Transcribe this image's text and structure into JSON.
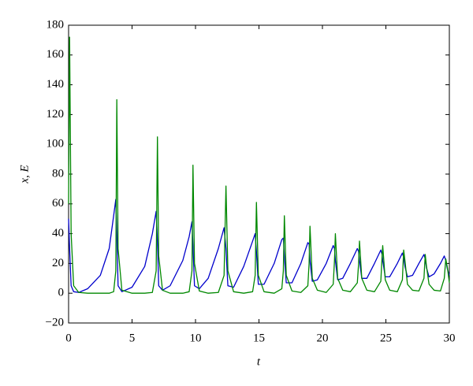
{
  "chart_data": {
    "type": "line",
    "xlabel": "t",
    "ylabel": "x, E",
    "x": [
      0,
      0.08,
      0.2,
      0.4,
      0.8,
      1.5,
      2.5,
      3.2,
      3.55,
      3.72,
      3.8,
      3.9,
      4.2,
      5,
      6,
      6.6,
      6.9,
      7,
      7.1,
      7.4,
      8,
      9,
      9.5,
      9.72,
      9.8,
      9.92,
      10.3,
      11,
      11.8,
      12.25,
      12.4,
      12.55,
      13,
      13.8,
      14.5,
      14.7,
      14.8,
      14.95,
      15.4,
      16.2,
      16.8,
      16.92,
      17,
      17.15,
      17.6,
      18.3,
      18.85,
      18.95,
      19.02,
      19.2,
      19.6,
      20.3,
      20.85,
      20.95,
      21.02,
      21.2,
      21.6,
      22.2,
      22.75,
      22.85,
      22.92,
      23.1,
      23.5,
      24.1,
      24.6,
      24.7,
      24.75,
      24.95,
      25.3,
      25.9,
      26.3,
      26.4,
      26.5,
      26.7,
      27.1,
      27.6,
      28,
      28.1,
      28.2,
      28.4,
      28.8,
      29.3,
      29.6,
      29.72,
      29.85,
      30
    ],
    "series": [
      {
        "color": "#0000cc",
        "values": [
          50,
          30,
          5,
          1,
          0.5,
          3,
          12,
          30,
          52,
          63,
          40,
          5,
          1,
          4,
          18,
          40,
          55,
          35,
          5,
          2,
          5,
          22,
          38,
          48,
          32,
          5,
          3,
          10,
          30,
          44,
          30,
          5,
          4,
          18,
          35,
          40,
          28,
          6,
          6,
          20,
          36,
          37,
          25,
          7,
          7,
          20,
          34,
          33,
          22,
          8,
          9,
          20,
          32,
          30,
          22,
          9,
          10,
          20,
          30,
          28,
          22,
          10,
          10,
          20,
          29,
          26,
          22,
          11,
          11,
          20,
          27,
          24,
          18,
          11,
          12,
          20,
          26,
          23,
          17,
          11,
          13,
          20,
          25,
          22,
          16,
          12
        ]
      },
      {
        "color": "#008800",
        "values": [
          60,
          172,
          40,
          5,
          0.5,
          0,
          0,
          0,
          1,
          15,
          130,
          30,
          2,
          0,
          0,
          0.5,
          15,
          105,
          25,
          2,
          0,
          0,
          1,
          15,
          86,
          20,
          1.5,
          0,
          0.5,
          12,
          72,
          15,
          1,
          0,
          1,
          12,
          61,
          12,
          1,
          0,
          3,
          15,
          52,
          12,
          1.5,
          0.5,
          5,
          20,
          45,
          10,
          2,
          0.5,
          6,
          22,
          40,
          10,
          2,
          1,
          7,
          20,
          35,
          10,
          2,
          1,
          8,
          25,
          32,
          9,
          2,
          1,
          9,
          29,
          22,
          6,
          2,
          1.5,
          10,
          26,
          18,
          6,
          2,
          1.5,
          10,
          23,
          17,
          7
        ]
      }
    ],
    "xlim": [
      0,
      30
    ],
    "xticks": [
      0,
      5,
      10,
      15,
      20,
      25,
      30
    ],
    "ylim": [
      -20,
      180
    ],
    "yticks": [
      {
        "value": -20,
        "label": "−20"
      },
      0,
      20,
      40,
      60,
      80,
      100,
      120,
      140,
      160,
      180
    ]
  }
}
